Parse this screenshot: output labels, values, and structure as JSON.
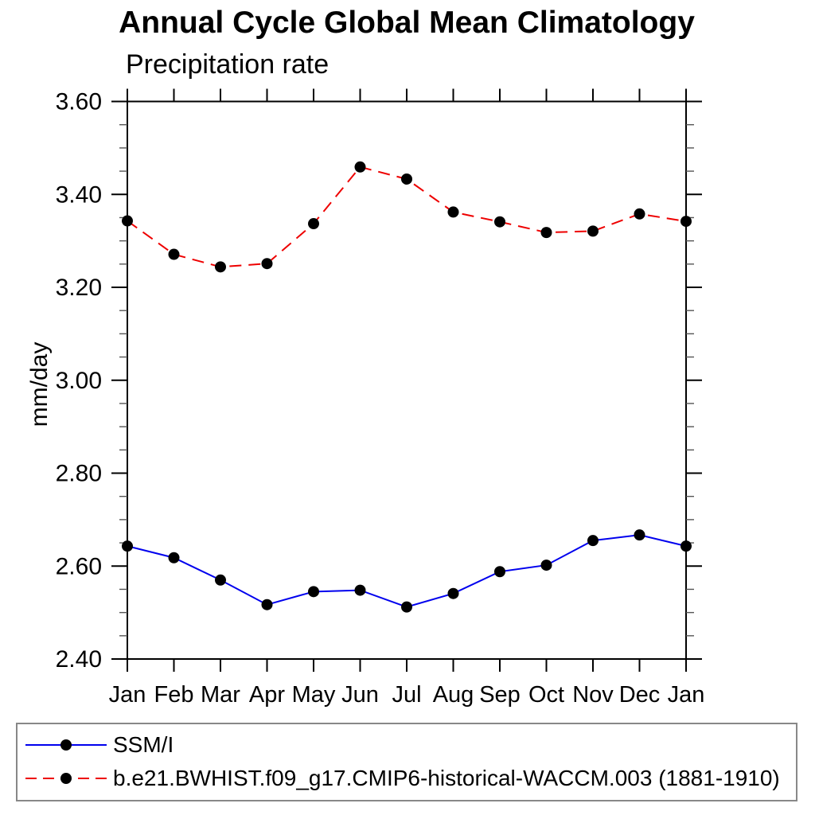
{
  "chart_data": {
    "type": "line",
    "title": "Annual Cycle Global Mean Climatology",
    "subtitle": "Precipitation rate",
    "ylabel": "mm/day",
    "categories": [
      "Jan",
      "Feb",
      "Mar",
      "Apr",
      "May",
      "Jun",
      "Jul",
      "Aug",
      "Sep",
      "Oct",
      "Nov",
      "Dec",
      "Jan"
    ],
    "ylim": [
      2.4,
      3.6
    ],
    "ytick_major_step": 0.2,
    "ytick_minor_step": 0.05,
    "ytick_label_format": "2dp",
    "grid": false,
    "legend_position": "bottom",
    "series": [
      {
        "name": "SSM/I",
        "color": "#0000ee",
        "line_style": "solid",
        "marker": "filled-circle",
        "marker_color": "#000000",
        "values": [
          2.643,
          2.618,
          2.57,
          2.517,
          2.545,
          2.548,
          2.512,
          2.541,
          2.588,
          2.602,
          2.655,
          2.667,
          2.643
        ]
      },
      {
        "name": "b.e21.BWHIST.f09_g17.CMIP6-historical-WACCM.003 (1881-1910)",
        "color": "#ee0000",
        "line_style": "dashed",
        "marker": "filled-circle",
        "marker_color": "#000000",
        "values": [
          3.343,
          3.271,
          3.244,
          3.251,
          3.337,
          3.459,
          3.433,
          3.362,
          3.341,
          3.318,
          3.321,
          3.358,
          3.342
        ]
      }
    ],
    "colors": {
      "axis": "#000000",
      "minor_tick": "#555555",
      "legend_border": "#888888",
      "text": "#000000",
      "background": "#ffffff"
    }
  }
}
